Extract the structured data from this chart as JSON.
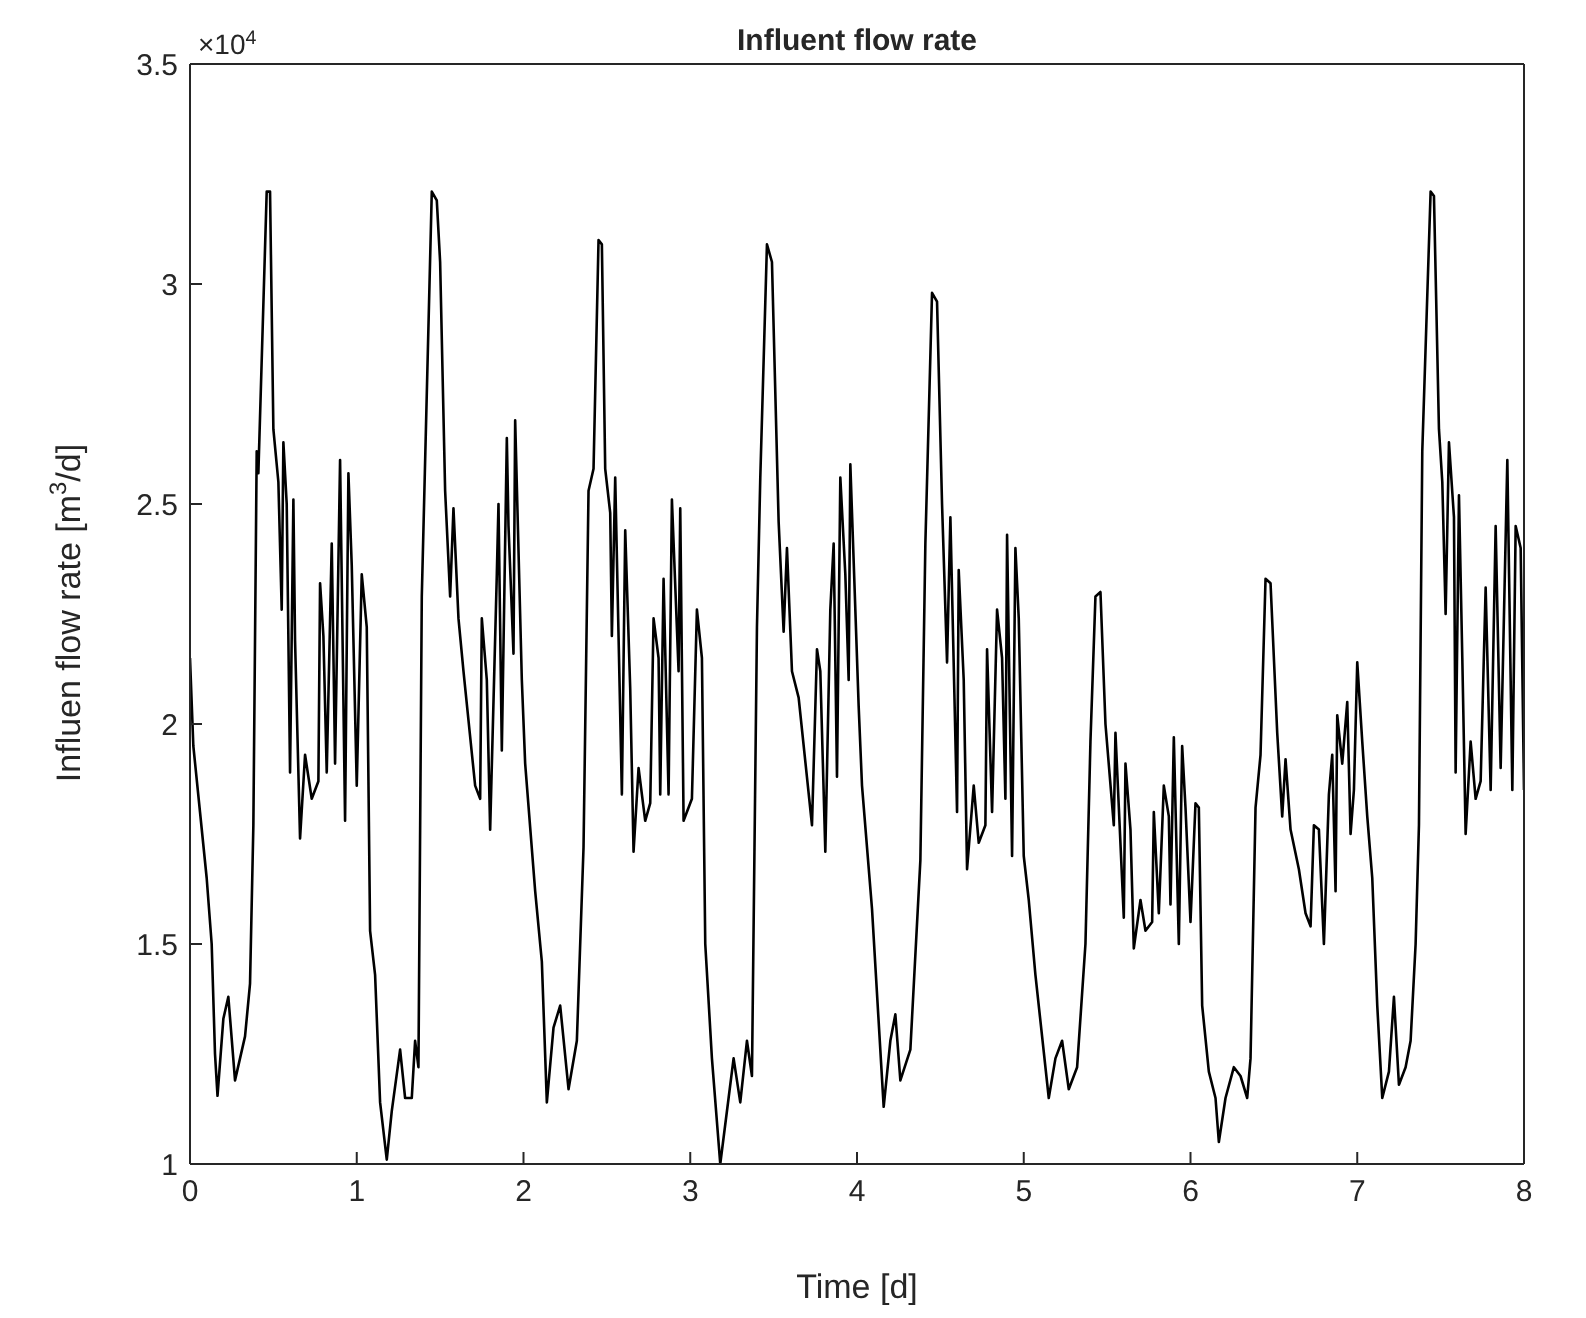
{
  "chart_data": {
    "type": "line",
    "title": "Influent flow rate",
    "xlabel": "Time [d]",
    "ylabel": "Influen flow rate [m$^{3}$/d]",
    "annotations": [
      "×10$^{4}$"
    ],
    "xlim": [
      0,
      8
    ],
    "xticks": [
      0,
      1,
      2,
      3,
      4,
      5,
      6,
      7,
      8
    ],
    "ylim": [
      1,
      3.5
    ],
    "yticks": [
      1,
      1.5,
      2,
      2.5,
      3,
      3.5
    ],
    "marker": "none",
    "line_style": "solid",
    "x": [
      0,
      0.02,
      0.06,
      0.1,
      0.13,
      0.15,
      0.165,
      0.2,
      0.23,
      0.27,
      0.33,
      0.36,
      0.38,
      0.4,
      0.41,
      0.46,
      0.48,
      0.5,
      0.53,
      0.55,
      0.56,
      0.58,
      0.6,
      0.62,
      0.63,
      0.66,
      0.69,
      0.73,
      0.77,
      0.78,
      0.8,
      0.82,
      0.85,
      0.87,
      0.9,
      0.93,
      0.95,
      0.97,
      1.0,
      1.03,
      1.06,
      1.08,
      1.11,
      1.14,
      1.18,
      1.21,
      1.26,
      1.29,
      1.33,
      1.35,
      1.37,
      1.39,
      1.45,
      1.48,
      1.5,
      1.53,
      1.56,
      1.58,
      1.61,
      1.64,
      1.71,
      1.74,
      1.75,
      1.78,
      1.8,
      1.84,
      1.85,
      1.87,
      1.9,
      1.91,
      1.94,
      1.95,
      1.99,
      2.01,
      2.07,
      2.11,
      2.14,
      2.18,
      2.22,
      2.27,
      2.32,
      2.36,
      2.39,
      2.42,
      2.45,
      2.47,
      2.49,
      2.52,
      2.53,
      2.55,
      2.59,
      2.61,
      2.64,
      2.66,
      2.69,
      2.73,
      2.76,
      2.78,
      2.81,
      2.82,
      2.84,
      2.87,
      2.89,
      2.93,
      2.94,
      2.96,
      3.01,
      3.04,
      3.07,
      3.09,
      3.13,
      3.18,
      3.23,
      3.26,
      3.3,
      3.34,
      3.37,
      3.4,
      3.42,
      3.46,
      3.49,
      3.53,
      3.56,
      3.58,
      3.61,
      3.65,
      3.73,
      3.76,
      3.78,
      3.81,
      3.84,
      3.86,
      3.88,
      3.9,
      3.93,
      3.95,
      3.96,
      4.01,
      4.03,
      4.09,
      4.16,
      4.2,
      4.23,
      4.26,
      4.32,
      4.38,
      4.41,
      4.45,
      4.48,
      4.51,
      4.54,
      4.56,
      4.6,
      4.61,
      4.64,
      4.66,
      4.7,
      4.73,
      4.77,
      4.78,
      4.81,
      4.84,
      4.87,
      4.89,
      4.9,
      4.93,
      4.95,
      4.97,
      5.0,
      5.03,
      5.07,
      5.15,
      5.19,
      5.23,
      5.27,
      5.32,
      5.37,
      5.4,
      5.43,
      5.46,
      5.49,
      5.54,
      5.55,
      5.6,
      5.61,
      5.64,
      5.66,
      5.7,
      5.73,
      5.77,
      5.78,
      5.81,
      5.84,
      5.87,
      5.88,
      5.9,
      5.93,
      5.95,
      5.97,
      6.0,
      6.03,
      6.05,
      6.07,
      6.11,
      6.15,
      6.17,
      6.21,
      6.26,
      6.3,
      6.34,
      6.36,
      6.39,
      6.42,
      6.45,
      6.48,
      6.52,
      6.55,
      6.57,
      6.6,
      6.65,
      6.69,
      6.72,
      6.74,
      6.77,
      6.8,
      6.83,
      6.85,
      6.87,
      6.88,
      6.91,
      6.94,
      6.96,
      6.98,
      7.0,
      7.03,
      7.06,
      7.09,
      7.12,
      7.15,
      7.19,
      7.22,
      7.25,
      7.29,
      7.32,
      7.35,
      7.37,
      7.39,
      7.44,
      7.46,
      7.49,
      7.51,
      7.53,
      7.55,
      7.58,
      7.59,
      7.61,
      7.63,
      7.65,
      7.68,
      7.71,
      7.74,
      7.77,
      7.8,
      7.83,
      7.86,
      7.9,
      7.93,
      7.95,
      7.98,
      8.0
    ],
    "series": [
      {
        "color": "#000000",
        "values": [
          2.15,
          1.95,
          1.8,
          1.65,
          1.5,
          1.25,
          1.155,
          1.33,
          1.38,
          1.19,
          1.29,
          1.41,
          1.77,
          2.62,
          2.57,
          3.21,
          3.21,
          2.67,
          2.55,
          2.26,
          2.64,
          2.5,
          1.89,
          2.51,
          2.19,
          1.74,
          1.93,
          1.83,
          1.87,
          2.32,
          2.2,
          1.89,
          2.41,
          1.91,
          2.6,
          1.78,
          2.57,
          2.36,
          1.86,
          2.34,
          2.22,
          1.53,
          1.43,
          1.14,
          1.01,
          1.12,
          1.26,
          1.15,
          1.15,
          1.28,
          1.22,
          2.29,
          3.21,
          3.19,
          3.05,
          2.53,
          2.29,
          2.49,
          2.24,
          2.12,
          1.86,
          1.83,
          2.24,
          2.1,
          1.76,
          2.34,
          2.5,
          1.94,
          2.65,
          2.45,
          2.16,
          2.69,
          2.1,
          1.91,
          1.62,
          1.46,
          1.14,
          1.31,
          1.36,
          1.17,
          1.28,
          1.72,
          2.53,
          2.58,
          3.1,
          3.09,
          2.58,
          2.48,
          2.2,
          2.56,
          1.84,
          2.44,
          2.08,
          1.71,
          1.9,
          1.78,
          1.82,
          2.24,
          2.15,
          1.84,
          2.33,
          1.84,
          2.51,
          2.12,
          2.49,
          1.78,
          1.83,
          2.26,
          2.15,
          1.5,
          1.24,
          1.0,
          1.15,
          1.24,
          1.14,
          1.28,
          1.2,
          2.22,
          2.56,
          3.09,
          3.05,
          2.46,
          2.21,
          2.4,
          2.12,
          2.06,
          1.77,
          2.17,
          2.12,
          1.71,
          2.26,
          2.41,
          1.88,
          2.56,
          2.34,
          2.1,
          2.59,
          2.04,
          1.86,
          1.58,
          1.13,
          1.28,
          1.34,
          1.19,
          1.26,
          1.69,
          2.41,
          2.98,
          2.96,
          2.5,
          2.14,
          2.47,
          1.8,
          2.35,
          2.1,
          1.67,
          1.86,
          1.73,
          1.77,
          2.17,
          1.8,
          2.26,
          2.15,
          1.83,
          2.43,
          1.7,
          2.4,
          2.24,
          1.7,
          1.6,
          1.43,
          1.15,
          1.24,
          1.28,
          1.17,
          1.22,
          1.5,
          1.96,
          2.29,
          2.3,
          2.0,
          1.77,
          1.98,
          1.56,
          1.91,
          1.76,
          1.49,
          1.6,
          1.53,
          1.55,
          1.8,
          1.57,
          1.86,
          1.79,
          1.59,
          1.97,
          1.5,
          1.95,
          1.81,
          1.55,
          1.82,
          1.81,
          1.36,
          1.21,
          1.15,
          1.05,
          1.15,
          1.22,
          1.2,
          1.15,
          1.24,
          1.81,
          1.93,
          2.33,
          2.32,
          1.98,
          1.79,
          1.92,
          1.76,
          1.67,
          1.57,
          1.54,
          1.77,
          1.76,
          1.5,
          1.84,
          1.93,
          1.62,
          2.02,
          1.91,
          2.05,
          1.75,
          1.85,
          2.14,
          1.96,
          1.79,
          1.65,
          1.36,
          1.15,
          1.21,
          1.38,
          1.18,
          1.22,
          1.28,
          1.5,
          1.77,
          2.62,
          3.21,
          3.2,
          2.67,
          2.55,
          2.25,
          2.64,
          2.47,
          1.89,
          2.52,
          2.15,
          1.75,
          1.96,
          1.83,
          1.87,
          2.31,
          1.85,
          2.45,
          1.9,
          2.6,
          1.85,
          2.45,
          2.4,
          1.85
        ]
      }
    ]
  }
}
